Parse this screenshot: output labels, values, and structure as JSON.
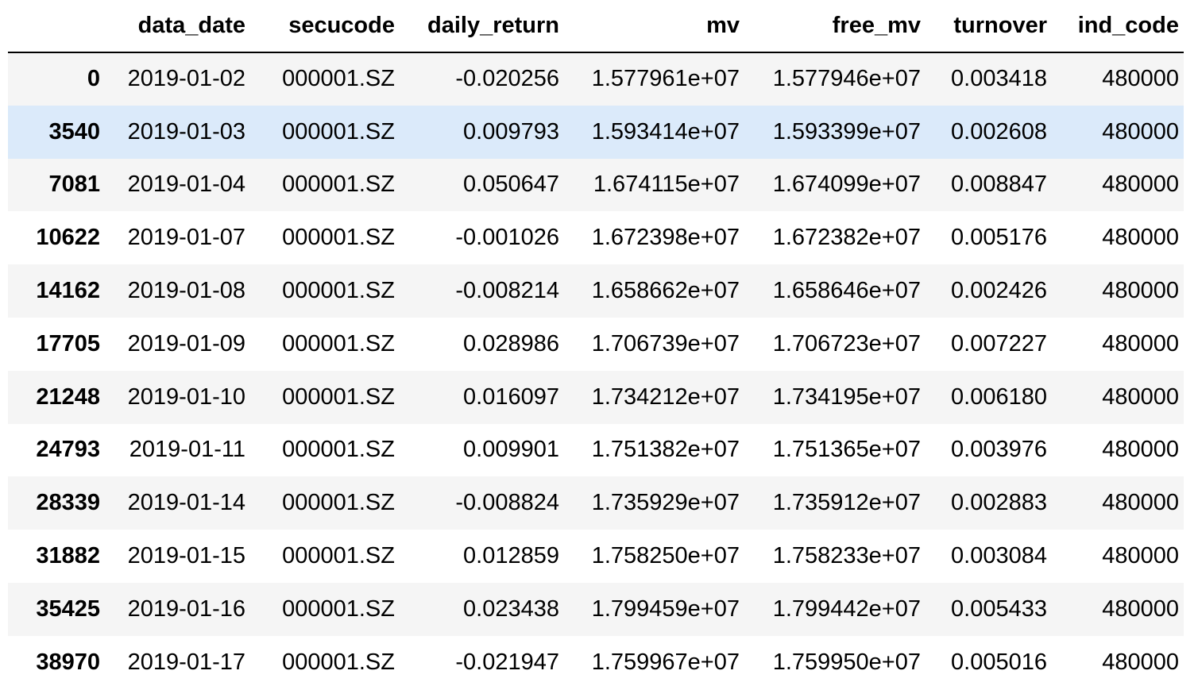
{
  "table": {
    "index_header": "",
    "columns": [
      "data_date",
      "secucode",
      "daily_return",
      "mv",
      "free_mv",
      "turnover",
      "ind_code"
    ],
    "rows": [
      {
        "index": "0",
        "cells": [
          "2019-01-02",
          "000001.SZ",
          "-0.020256",
          "1.577961e+07",
          "1.577946e+07",
          "0.003418",
          "480000"
        ]
      },
      {
        "index": "3540",
        "cells": [
          "2019-01-03",
          "000001.SZ",
          "0.009793",
          "1.593414e+07",
          "1.593399e+07",
          "0.002608",
          "480000"
        ]
      },
      {
        "index": "7081",
        "cells": [
          "2019-01-04",
          "000001.SZ",
          "0.050647",
          "1.674115e+07",
          "1.674099e+07",
          "0.008847",
          "480000"
        ]
      },
      {
        "index": "10622",
        "cells": [
          "2019-01-07",
          "000001.SZ",
          "-0.001026",
          "1.672398e+07",
          "1.672382e+07",
          "0.005176",
          "480000"
        ]
      },
      {
        "index": "14162",
        "cells": [
          "2019-01-08",
          "000001.SZ",
          "-0.008214",
          "1.658662e+07",
          "1.658646e+07",
          "0.002426",
          "480000"
        ]
      },
      {
        "index": "17705",
        "cells": [
          "2019-01-09",
          "000001.SZ",
          "0.028986",
          "1.706739e+07",
          "1.706723e+07",
          "0.007227",
          "480000"
        ]
      },
      {
        "index": "21248",
        "cells": [
          "2019-01-10",
          "000001.SZ",
          "0.016097",
          "1.734212e+07",
          "1.734195e+07",
          "0.006180",
          "480000"
        ]
      },
      {
        "index": "24793",
        "cells": [
          "2019-01-11",
          "000001.SZ",
          "0.009901",
          "1.751382e+07",
          "1.751365e+07",
          "0.003976",
          "480000"
        ]
      },
      {
        "index": "28339",
        "cells": [
          "2019-01-14",
          "000001.SZ",
          "-0.008824",
          "1.735929e+07",
          "1.735912e+07",
          "0.002883",
          "480000"
        ]
      },
      {
        "index": "31882",
        "cells": [
          "2019-01-15",
          "000001.SZ",
          "0.012859",
          "1.758250e+07",
          "1.758233e+07",
          "0.003084",
          "480000"
        ]
      },
      {
        "index": "35425",
        "cells": [
          "2019-01-16",
          "000001.SZ",
          "0.023438",
          "1.799459e+07",
          "1.799442e+07",
          "0.005433",
          "480000"
        ]
      },
      {
        "index": "38970",
        "cells": [
          "2019-01-17",
          "000001.SZ",
          "-0.021947",
          "1.759967e+07",
          "1.759950e+07",
          "0.005016",
          "480000"
        ]
      }
    ],
    "hovered_row_index": "3540",
    "colors": {
      "odd_row_bg": "#f5f5f5",
      "even_row_bg": "#ffffff",
      "hover_row_bg": "#dbeafa",
      "header_rule": "#000000"
    }
  }
}
